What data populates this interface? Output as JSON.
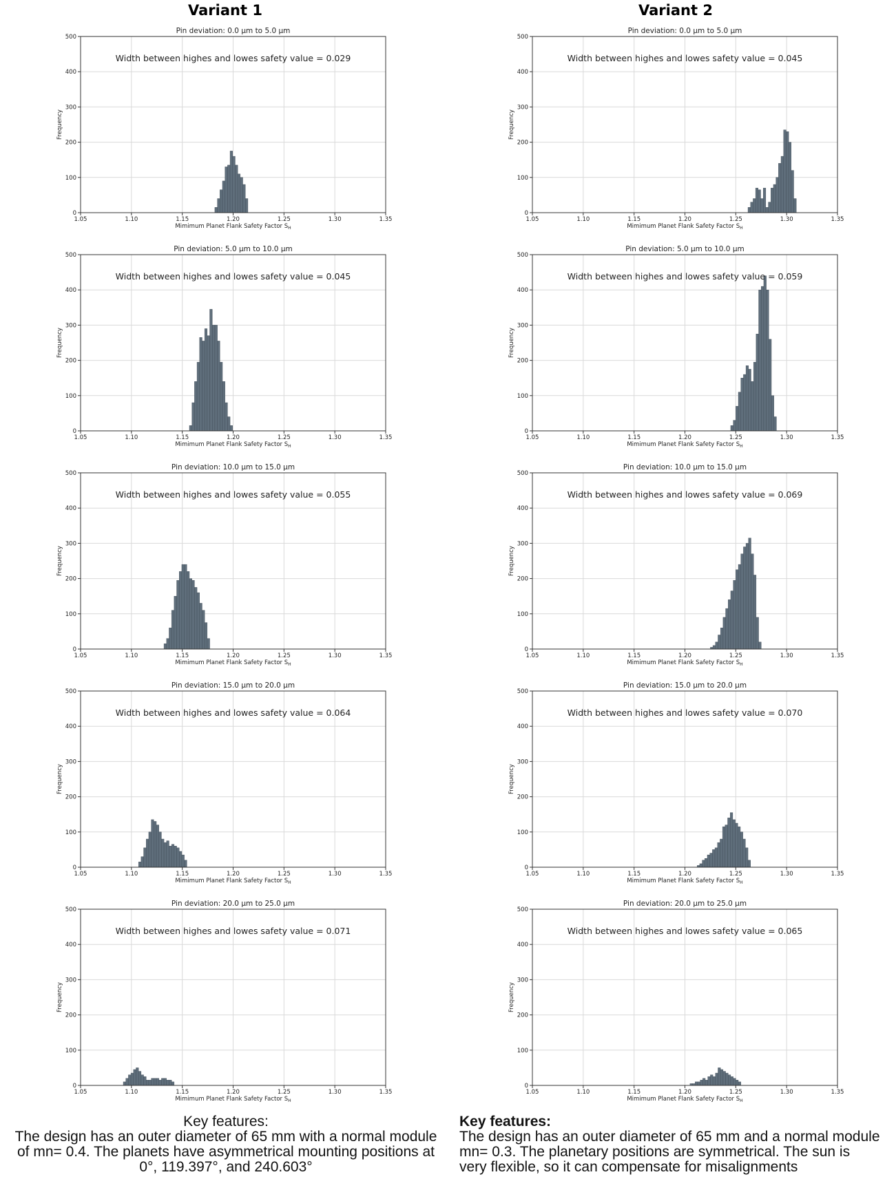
{
  "columns": [
    {
      "title": "Variant 1"
    },
    {
      "title": "Variant 2"
    }
  ],
  "footers": [
    {
      "heading": "Key features:",
      "body": "The design has an outer diameter of 65 mm with a normal module of mn= 0.4. The planets have asymmetrical mounting positions at 0°, 119.397°, and 240.603°"
    },
    {
      "heading": "Key features:",
      "body": "The design has an outer diameter of 65 mm and a normal module mn= 0.3. The planetary positions are symmetrical. The sun is very flexible, so it can compensate for misalignments"
    }
  ],
  "colors": {
    "bar": "#5f6e7b",
    "bar_edge": "#3e4a55",
    "grid": "#d9d9d9",
    "axes": "#333333"
  },
  "chart_data": [
    {
      "type": "bar",
      "variant": "Variant 1",
      "title": "Pin deviation: 0.0 µm to 5.0 µm",
      "annotation": "Width between highes and lowes safety value = 0.029",
      "xlabel": "Mimimum Planet Flank Safety Factor S",
      "xlabel_sub": "H",
      "ylabel": "Frequency",
      "xlim": [
        1.05,
        1.35
      ],
      "ylim": [
        0,
        500
      ],
      "xticks": [
        "1.05",
        "1.10",
        "1.15",
        "1.20",
        "1.25",
        "1.30",
        "1.35"
      ],
      "yticks": [
        "0",
        "100",
        "200",
        "300",
        "400",
        "500"
      ],
      "grid": true,
      "bin_start": 1.182,
      "bin_width": 0.0025,
      "values": [
        15,
        40,
        65,
        90,
        130,
        135,
        175,
        160,
        135,
        110,
        100,
        80,
        40
      ]
    },
    {
      "type": "bar",
      "variant": "Variant 2",
      "title": "Pin deviation: 0.0 µm to 5.0 µm",
      "annotation": "Width between highes and lowes safety value = 0.045",
      "xlabel": "Mimimum Planet Flank Safety Factor S",
      "xlabel_sub": "H",
      "ylabel": "Frequency",
      "xlim": [
        1.05,
        1.35
      ],
      "ylim": [
        0,
        500
      ],
      "xticks": [
        "1.05",
        "1.10",
        "1.15",
        "1.20",
        "1.25",
        "1.30",
        "1.35"
      ],
      "yticks": [
        "0",
        "100",
        "200",
        "300",
        "400",
        "500"
      ],
      "grid": true,
      "bin_start": 1.262,
      "bin_width": 0.0025,
      "values": [
        15,
        30,
        40,
        70,
        65,
        40,
        70,
        15,
        30,
        70,
        80,
        100,
        140,
        160,
        235,
        230,
        200,
        120,
        40
      ]
    },
    {
      "type": "bar",
      "variant": "Variant 1",
      "title": "Pin deviation: 5.0 µm to 10.0 µm",
      "annotation": "Width between highes and lowes safety value = 0.045",
      "xlabel": "Mimimum Planet Flank Safety Factor S",
      "xlabel_sub": "H",
      "ylabel": "Frequency",
      "xlim": [
        1.05,
        1.35
      ],
      "ylim": [
        0,
        500
      ],
      "xticks": [
        "1.05",
        "1.10",
        "1.15",
        "1.20",
        "1.25",
        "1.30",
        "1.35"
      ],
      "yticks": [
        "0",
        "100",
        "200",
        "300",
        "400",
        "500"
      ],
      "grid": true,
      "bin_start": 1.157,
      "bin_width": 0.0025,
      "values": [
        15,
        80,
        140,
        195,
        265,
        255,
        290,
        270,
        345,
        300,
        300,
        255,
        195,
        140,
        80,
        40,
        15
      ]
    },
    {
      "type": "bar",
      "variant": "Variant 2",
      "title": "Pin deviation: 5.0 µm to 10.0 µm",
      "annotation": "Width between highes and lowes safety value = 0.059",
      "xlabel": "Mimimum Planet Flank Safety Factor S",
      "xlabel_sub": "H",
      "ylabel": "Frequency",
      "xlim": [
        1.05,
        1.35
      ],
      "ylim": [
        0,
        500
      ],
      "xticks": [
        "1.05",
        "1.10",
        "1.15",
        "1.20",
        "1.25",
        "1.30",
        "1.35"
      ],
      "yticks": [
        "0",
        "100",
        "200",
        "300",
        "400",
        "500"
      ],
      "grid": true,
      "bin_start": 1.245,
      "bin_width": 0.0025,
      "values": [
        15,
        30,
        70,
        110,
        150,
        160,
        185,
        175,
        140,
        195,
        275,
        400,
        410,
        440,
        400,
        260,
        100,
        40
      ]
    },
    {
      "type": "bar",
      "variant": "Variant 1",
      "title": "Pin deviation: 10.0 µm to 15.0 µm",
      "annotation": "Width between highes and lowes safety value = 0.055",
      "xlabel": "Mimimum Planet Flank Safety Factor S",
      "xlabel_sub": "H",
      "ylabel": "Frequency",
      "xlim": [
        1.05,
        1.35
      ],
      "ylim": [
        0,
        500
      ],
      "xticks": [
        "1.05",
        "1.10",
        "1.15",
        "1.20",
        "1.25",
        "1.30",
        "1.35"
      ],
      "yticks": [
        "0",
        "100",
        "200",
        "300",
        "400",
        "500"
      ],
      "grid": true,
      "bin_start": 1.132,
      "bin_width": 0.0025,
      "values": [
        15,
        30,
        60,
        110,
        150,
        195,
        220,
        240,
        240,
        220,
        200,
        195,
        175,
        160,
        130,
        110,
        75,
        30
      ]
    },
    {
      "type": "bar",
      "variant": "Variant 2",
      "title": "Pin deviation: 10.0 µm to 15.0 µm",
      "annotation": "Width between highes and lowes safety value = 0.069",
      "xlabel": "Mimimum Planet Flank Safety Factor S",
      "xlabel_sub": "H",
      "ylabel": "Frequency",
      "xlim": [
        1.05,
        1.35
      ],
      "ylim": [
        0,
        500
      ],
      "xticks": [
        "1.05",
        "1.10",
        "1.15",
        "1.20",
        "1.25",
        "1.30",
        "1.35"
      ],
      "yticks": [
        "0",
        "100",
        "200",
        "300",
        "400",
        "500"
      ],
      "grid": true,
      "bin_start": 1.225,
      "bin_width": 0.0025,
      "values": [
        5,
        10,
        20,
        40,
        60,
        90,
        115,
        140,
        165,
        195,
        225,
        240,
        270,
        290,
        300,
        315,
        270,
        210,
        90,
        20
      ]
    },
    {
      "type": "bar",
      "variant": "Variant 1",
      "title": "Pin deviation: 15.0 µm to 20.0 µm",
      "annotation": "Width between highes and lowes safety value = 0.064",
      "xlabel": "Mimimum Planet Flank Safety Factor S",
      "xlabel_sub": "H",
      "ylabel": "Frequency",
      "xlim": [
        1.05,
        1.35
      ],
      "ylim": [
        0,
        500
      ],
      "xticks": [
        "1.05",
        "1.10",
        "1.15",
        "1.20",
        "1.25",
        "1.30",
        "1.35"
      ],
      "yticks": [
        "0",
        "100",
        "200",
        "300",
        "400",
        "500"
      ],
      "grid": true,
      "bin_start": 1.107,
      "bin_width": 0.0025,
      "values": [
        15,
        30,
        55,
        80,
        100,
        135,
        130,
        120,
        100,
        80,
        70,
        75,
        60,
        65,
        60,
        55,
        45,
        35,
        20
      ]
    },
    {
      "type": "bar",
      "variant": "Variant 2",
      "title": "Pin deviation: 15.0 µm to 20.0 µm",
      "annotation": "Width between highes and lowes safety value = 0.070",
      "xlabel": "Mimimum Planet Flank Safety Factor S",
      "xlabel_sub": "H",
      "ylabel": "Frequency",
      "xlim": [
        1.05,
        1.35
      ],
      "ylim": [
        0,
        500
      ],
      "xticks": [
        "1.05",
        "1.10",
        "1.15",
        "1.20",
        "1.25",
        "1.30",
        "1.35"
      ],
      "yticks": [
        "0",
        "100",
        "200",
        "300",
        "400",
        "500"
      ],
      "grid": true,
      "bin_start": 1.212,
      "bin_width": 0.0025,
      "values": [
        5,
        10,
        20,
        25,
        35,
        40,
        50,
        55,
        70,
        80,
        115,
        120,
        140,
        155,
        135,
        125,
        115,
        100,
        80,
        55,
        20
      ]
    },
    {
      "type": "bar",
      "variant": "Variant 1",
      "title": "Pin deviation: 20.0 µm to 25.0 µm",
      "annotation": "Width between highes and lowes safety value = 0.071",
      "xlabel": "Mimimum Planet Flank Safety Factor S",
      "xlabel_sub": "H",
      "ylabel": "Frequency",
      "xlim": [
        1.05,
        1.35
      ],
      "ylim": [
        0,
        500
      ],
      "xticks": [
        "1.05",
        "1.10",
        "1.15",
        "1.20",
        "1.25",
        "1.30",
        "1.35"
      ],
      "yticks": [
        "0",
        "100",
        "200",
        "300",
        "400",
        "500"
      ],
      "grid": true,
      "bin_start": 1.092,
      "bin_width": 0.0025,
      "values": [
        10,
        20,
        30,
        35,
        45,
        50,
        40,
        30,
        25,
        15,
        15,
        20,
        20,
        20,
        15,
        20,
        20,
        15,
        15,
        10
      ]
    },
    {
      "type": "bar",
      "variant": "Variant 2",
      "title": "Pin deviation: 20.0 µm to 25.0 µm",
      "annotation": "Width between highes and lowes safety value = 0.065",
      "xlabel": "Mimimum Planet Flank Safety Factor S",
      "xlabel_sub": "H",
      "ylabel": "Frequency",
      "xlim": [
        1.05,
        1.35
      ],
      "ylim": [
        0,
        500
      ],
      "xticks": [
        "1.05",
        "1.10",
        "1.15",
        "1.20",
        "1.25",
        "1.30",
        "1.35"
      ],
      "yticks": [
        "0",
        "100",
        "200",
        "300",
        "400",
        "500"
      ],
      "grid": true,
      "bin_start": 1.205,
      "bin_width": 0.0025,
      "values": [
        5,
        5,
        10,
        10,
        15,
        20,
        15,
        25,
        30,
        25,
        35,
        50,
        45,
        40,
        35,
        30,
        25,
        20,
        15,
        10
      ]
    }
  ]
}
